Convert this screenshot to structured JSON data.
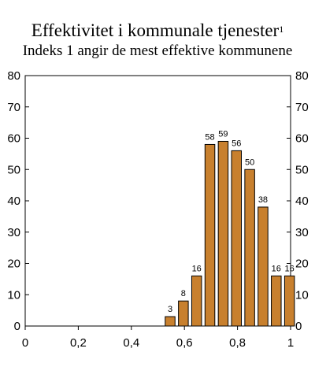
{
  "chart_data": {
    "type": "bar",
    "title": "Effektivitet i kommunale tjenester",
    "title_footnote": "1",
    "subtitle": "Indeks 1 angir de mest effektive kommunene",
    "xlabel": "",
    "ylabel": "",
    "xlim": [
      0,
      1
    ],
    "ylim": [
      0,
      80
    ],
    "x_ticks": [
      "0",
      "0,2",
      "0,4",
      "0,6",
      "0,8",
      "1"
    ],
    "y_ticks": [
      "0",
      "10",
      "20",
      "30",
      "40",
      "50",
      "60",
      "70",
      "80"
    ],
    "grid": false,
    "legend": "none",
    "bar_color": "#C8802E",
    "x": [
      0.55,
      0.6,
      0.65,
      0.7,
      0.75,
      0.8,
      0.85,
      0.9,
      0.95,
      1.0
    ],
    "values": [
      3,
      8,
      16,
      58,
      59,
      56,
      50,
      38,
      16,
      16
    ]
  }
}
